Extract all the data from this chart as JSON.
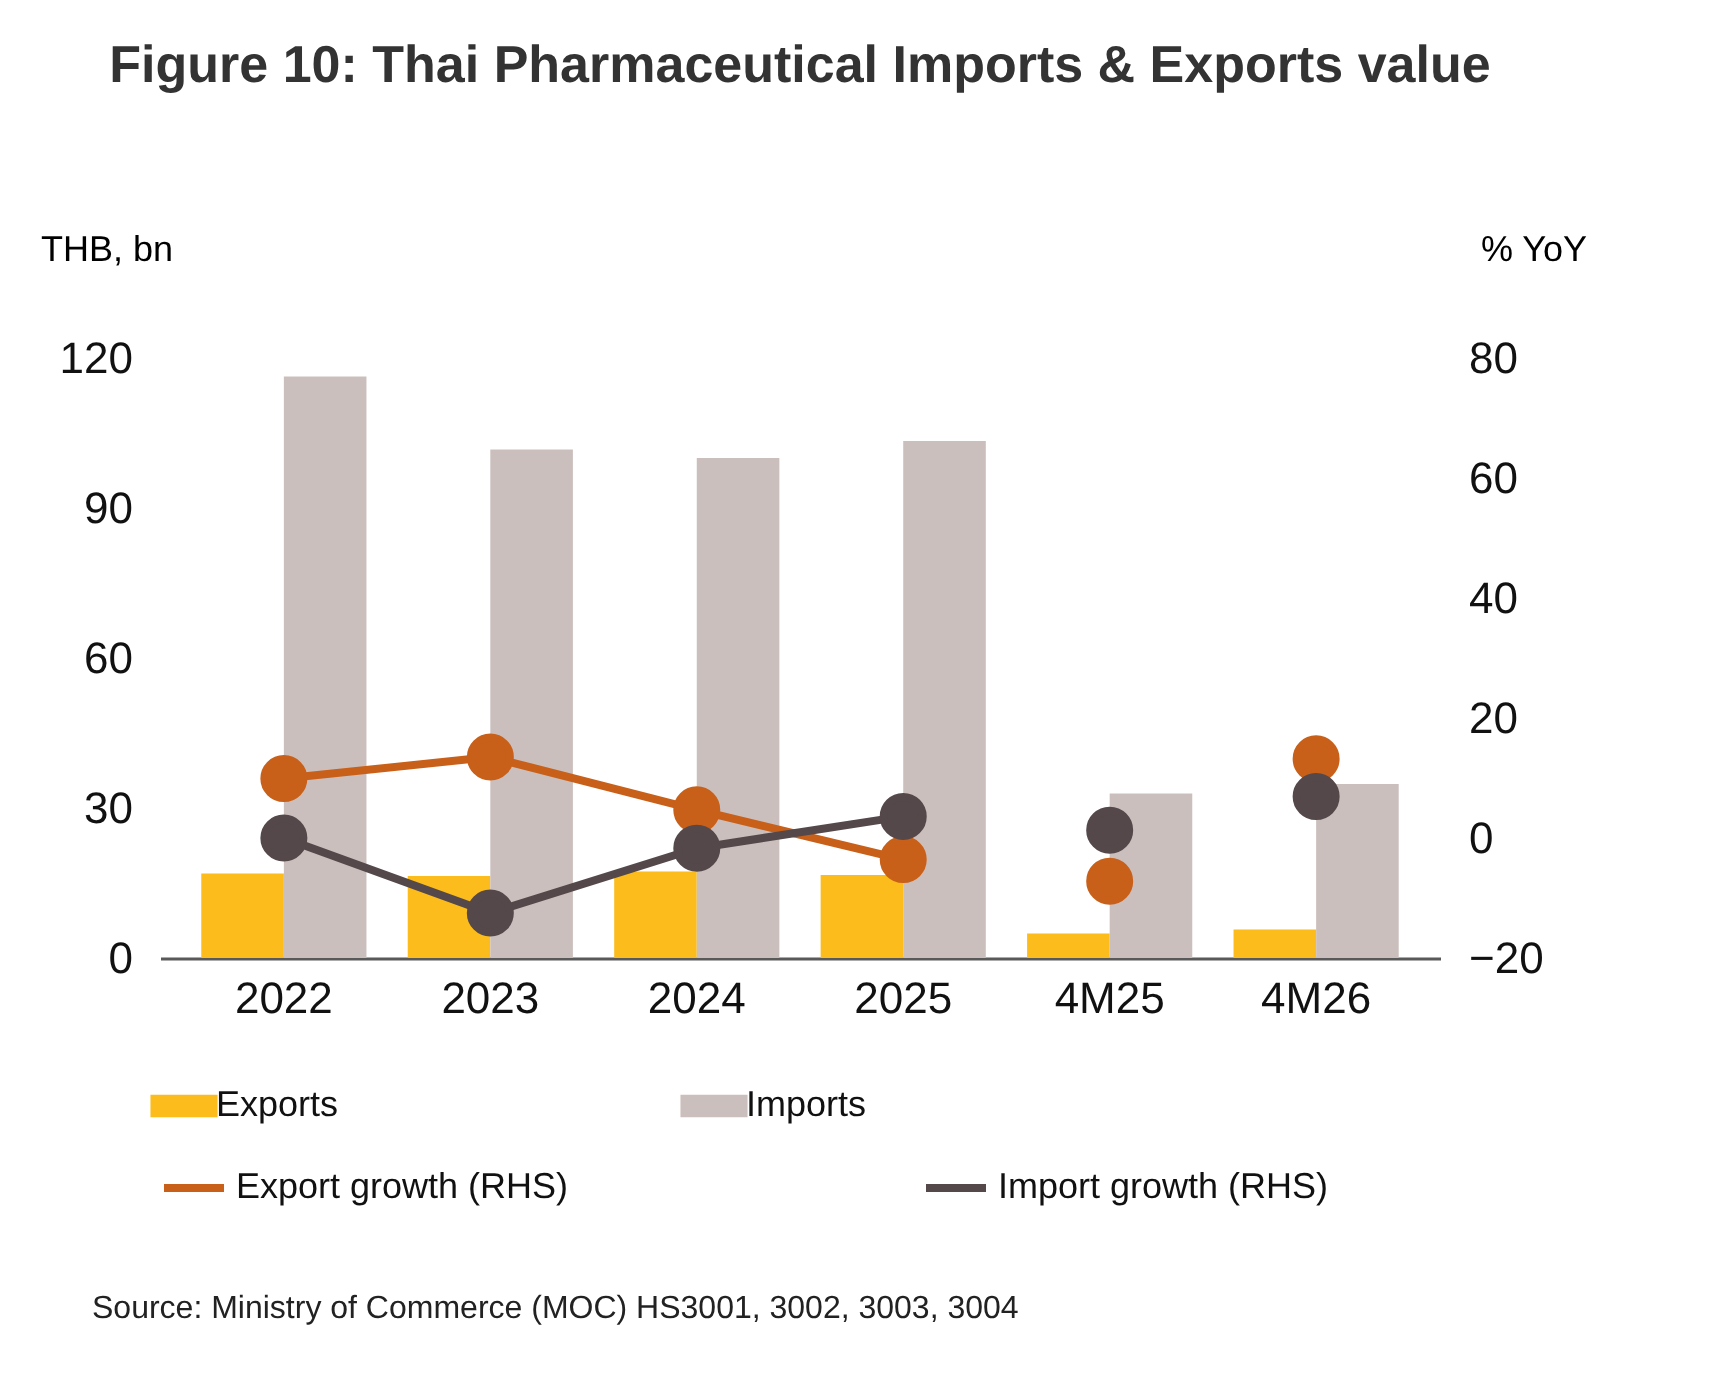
{
  "chart_data": {
    "type": "bar",
    "title": "Figure 10: Thai Pharmaceutical Imports & Exports value",
    "ylabel": "THB, bn",
    "y2label": "% YoY",
    "categories": [
      "2022",
      "2023",
      "2024",
      "2025",
      "4M25",
      "4M26"
    ],
    "series": [
      {
        "name": "Exports",
        "color": "#fbbc1c",
        "values": [
          16.9,
          16.4,
          17.3,
          16.6,
          4.9,
          5.7
        ]
      },
      {
        "name": "Imports",
        "color": "#cbbfbd",
        "values": [
          116.3,
          101.7,
          100,
          103.4,
          32.9,
          34.8
        ]
      },
      {
        "name": "Export growth (RHS)",
        "type": "line",
        "axis": "y2",
        "color": "#c8601a",
        "values": [
          9.9,
          13.5,
          4.7,
          -3.6,
          null,
          null
        ]
      },
      {
        "name": "Import growth (RHS)",
        "type": "line",
        "axis": "y2",
        "color": "#54484a",
        "values": [
          0,
          -12.5,
          -1.7,
          3.6,
          null,
          null
        ]
      },
      {
        "type": "scatter",
        "axis": "y2",
        "color": "#c8601a",
        "values": [
          null,
          null,
          null,
          null,
          -7.2,
          13.2
        ]
      },
      {
        "type": "scatter",
        "axis": "y2",
        "color": "#54484a",
        "values": [
          null,
          null,
          null,
          null,
          1.3,
          6.9
        ]
      }
    ],
    "ylim": [
      0,
      120
    ],
    "yticks": [
      0,
      30,
      60,
      90,
      120
    ],
    "y2lim": [
      -20,
      80
    ],
    "y2ticks": [
      -20,
      0,
      20,
      40,
      60,
      80
    ],
    "marker": "circle",
    "grid": false,
    "legend": "bottom",
    "line_style": "solid",
    "annotations": [
      "Source: Ministry of Commerce (MOC) HS3001, 3002, 3003, 3004"
    ]
  }
}
